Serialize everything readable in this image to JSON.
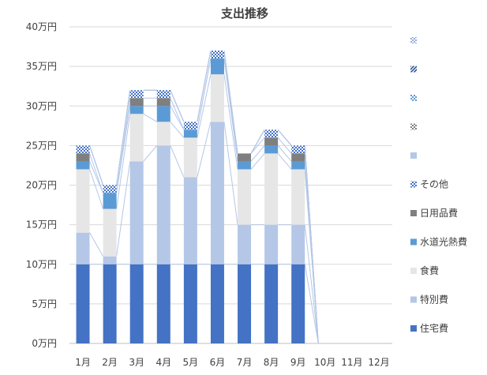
{
  "chart_data": {
    "type": "bar",
    "stacked": true,
    "title": "支出推移",
    "xlabel": "",
    "ylabel": "",
    "categories": [
      "1月",
      "2月",
      "3月",
      "4月",
      "5月",
      "6月",
      "7月",
      "8月",
      "9月",
      "10月",
      "11月",
      "12月"
    ],
    "y_ticks": [
      "0万円",
      "5万円",
      "10万円",
      "15万円",
      "20万円",
      "25万円",
      "30万円",
      "35万円",
      "40万円"
    ],
    "ylim": [
      0,
      40
    ],
    "grid": true,
    "legend_position": "right",
    "series": [
      {
        "name": "住宅費",
        "color": "#4472c4",
        "pattern": "solid",
        "values": [
          10,
          10,
          10,
          10,
          10,
          10,
          10,
          10,
          10,
          0,
          0,
          0
        ]
      },
      {
        "name": "特別費",
        "color": "#b4c7e7",
        "pattern": "solid",
        "values": [
          4,
          1,
          13,
          15,
          11,
          18,
          5,
          5,
          5,
          0,
          0,
          0
        ]
      },
      {
        "name": "食費",
        "color": "#e7e6e6",
        "pattern": "solid",
        "values": [
          8,
          6,
          6,
          3,
          5,
          6,
          7,
          9,
          7,
          0,
          0,
          0
        ]
      },
      {
        "name": "水道光熱費",
        "color": "#5b9bd5",
        "pattern": "solid",
        "values": [
          1,
          2,
          1,
          2,
          1,
          2,
          1,
          1,
          1,
          0,
          0,
          0
        ]
      },
      {
        "name": "日用品費",
        "color": "#7f7f7f",
        "pattern": "solid",
        "values": [
          1,
          0,
          1,
          1,
          0,
          0,
          1,
          1,
          1,
          0,
          0,
          0
        ]
      },
      {
        "name": "その他",
        "color": "#4472c4",
        "pattern": "checker",
        "values": [
          1,
          1,
          1,
          1,
          1,
          1,
          0,
          1,
          1,
          0,
          0,
          0
        ]
      },
      {
        "name": "",
        "color": "#b4c7e7",
        "pattern": "solid",
        "values": [
          0,
          0,
          0,
          0,
          0,
          0,
          0,
          0,
          0,
          0,
          0,
          0
        ]
      },
      {
        "name": "",
        "color": "#7f7f7f",
        "pattern": "checker",
        "values": [
          0,
          0,
          0,
          0,
          0,
          0,
          0,
          0,
          0,
          0,
          0,
          0
        ]
      },
      {
        "name": "",
        "color": "#5b9bd5",
        "pattern": "checker",
        "values": [
          0,
          0,
          0,
          0,
          0,
          0,
          0,
          0,
          0,
          0,
          0,
          0
        ]
      },
      {
        "name": "",
        "color": "#2f5597",
        "pattern": "diagonal",
        "values": [
          0,
          0,
          0,
          0,
          0,
          0,
          0,
          0,
          0,
          0,
          0,
          0
        ]
      },
      {
        "name": "",
        "color": "#8faadc",
        "pattern": "checker",
        "values": [
          0,
          0,
          0,
          0,
          0,
          0,
          0,
          0,
          0,
          0,
          0,
          0
        ]
      }
    ],
    "series_lines": true
  }
}
